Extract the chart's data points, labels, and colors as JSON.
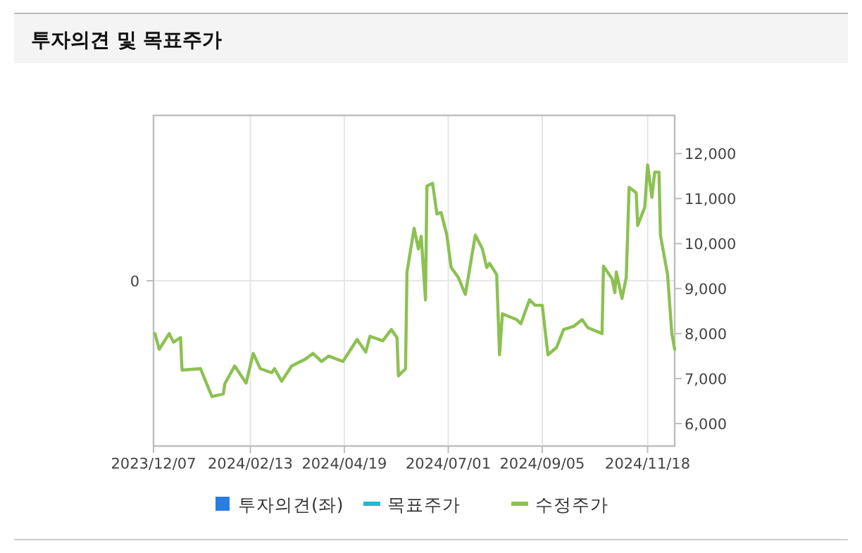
{
  "chart_data": {
    "type": "line",
    "title": "투자의견 및 목표주가",
    "xlim": [
      "2023-12-07",
      "2024-12-07"
    ],
    "xticks": [
      {
        "value": "2023-12-07",
        "label": "2023/12/07"
      },
      {
        "value": "2024-02-13",
        "label": "2024/02/13"
      },
      {
        "value": "2024-04-19",
        "label": "2024/04/19"
      },
      {
        "value": "2024-07-01",
        "label": "2024/07/01"
      },
      {
        "value": "2024-09-05",
        "label": "2024/09/05"
      },
      {
        "value": "2024-11-18",
        "label": "2024/11/18"
      }
    ],
    "annotations": [
      "0"
    ],
    "y2lim": [
      5500,
      12850
    ],
    "y2ticks": [
      {
        "value": 6000,
        "label": "6,000"
      },
      {
        "value": 7000,
        "label": "7,000"
      },
      {
        "value": 8000,
        "label": "8,000"
      },
      {
        "value": 9000,
        "label": "9,000"
      },
      {
        "value": 10000,
        "label": "10,000"
      },
      {
        "value": 11000,
        "label": "11,000"
      },
      {
        "value": 12000,
        "label": "12,000"
      }
    ],
    "grid": true,
    "legend": "bottom",
    "series": [
      {
        "name": "투자의견(좌)",
        "type": "bar",
        "color": "#2a7de1"
      },
      {
        "name": "목표주가",
        "type": "line",
        "axis": "y2",
        "color": "#20b8d0"
      },
      {
        "name": "수정주가",
        "axis": "y2",
        "color": "#8cc152",
        "x": [
          "2023-12-08",
          "2023-12-11",
          "2023-12-18",
          "2023-12-21",
          "2023-12-26",
          "2023-12-27",
          "2024-01-09",
          "2024-01-17",
          "2024-01-25",
          "2024-01-26",
          "2024-02-02",
          "2024-02-10",
          "2024-02-15",
          "2024-02-20",
          "2024-02-28",
          "2024-03-01",
          "2024-03-06",
          "2024-03-13",
          "2024-03-23",
          "2024-03-28",
          "2024-04-03",
          "2024-04-08",
          "2024-04-18",
          "2024-04-28",
          "2024-05-04",
          "2024-05-07",
          "2024-05-16",
          "2024-05-22",
          "2024-05-26",
          "2024-05-27",
          "2024-06-01",
          "2024-06-02",
          "2024-06-07",
          "2024-06-10",
          "2024-06-12",
          "2024-06-15",
          "2024-06-16",
          "2024-06-20",
          "2024-06-23",
          "2024-06-26",
          "2024-06-30",
          "2024-07-03",
          "2024-07-08",
          "2024-07-13",
          "2024-07-20",
          "2024-07-25",
          "2024-07-28",
          "2024-07-30",
          "2024-08-04",
          "2024-08-06",
          "2024-08-08",
          "2024-08-18",
          "2024-08-21",
          "2024-08-27",
          "2024-08-31",
          "2024-09-05",
          "2024-09-09",
          "2024-09-15",
          "2024-09-20",
          "2024-09-27",
          "2024-10-03",
          "2024-10-07",
          "2024-10-17",
          "2024-10-18",
          "2024-10-24",
          "2024-10-26",
          "2024-10-27",
          "2024-10-31",
          "2024-11-03",
          "2024-11-05",
          "2024-11-10",
          "2024-11-11",
          "2024-11-16",
          "2024-11-18",
          "2024-11-21",
          "2024-11-23",
          "2024-11-26",
          "2024-11-27",
          "2024-12-02",
          "2024-12-05",
          "2024-12-07"
        ],
        "values": [
          8000,
          7650,
          8000,
          7810,
          7910,
          7190,
          7220,
          6600,
          6660,
          6880,
          7280,
          6900,
          7560,
          7220,
          7130,
          7220,
          6940,
          7280,
          7440,
          7560,
          7380,
          7500,
          7380,
          7870,
          7590,
          7940,
          7840,
          8090,
          7910,
          7060,
          7220,
          9370,
          10340,
          9880,
          10160,
          8750,
          11280,
          11340,
          10660,
          10690,
          10190,
          9470,
          9250,
          8870,
          10190,
          9880,
          9470,
          9560,
          9310,
          7530,
          8440,
          8310,
          8220,
          8750,
          8630,
          8630,
          7530,
          7690,
          8090,
          8160,
          8310,
          8130,
          8000,
          9500,
          9220,
          8910,
          9370,
          8780,
          9250,
          11250,
          11130,
          10400,
          10810,
          11750,
          11030,
          11590,
          11590,
          10190,
          9310,
          8000,
          7650
        ]
      }
    ]
  }
}
